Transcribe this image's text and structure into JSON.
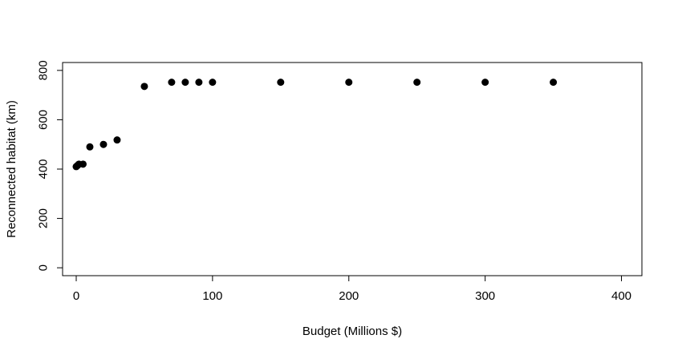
{
  "chart_data": {
    "type": "scatter",
    "title": "",
    "xlabel": "Budget (Millions $)",
    "ylabel": "Reconnected habitat (km)",
    "xlim": [
      -10,
      415
    ],
    "ylim": [
      -32,
      832
    ],
    "x_ticks": [
      0,
      100,
      200,
      300,
      400
    ],
    "y_ticks": [
      0,
      200,
      400,
      600,
      800
    ],
    "x_tick_labels": [
      "0",
      "100",
      "200",
      "300",
      "400"
    ],
    "y_tick_labels": [
      "0",
      "200",
      "400",
      "600",
      "800"
    ],
    "grid": false,
    "marker_color": "#000000",
    "points": [
      {
        "x": 0,
        "y": 410
      },
      {
        "x": 1,
        "y": 415
      },
      {
        "x": 2,
        "y": 420
      },
      {
        "x": 5,
        "y": 420
      },
      {
        "x": 10,
        "y": 490
      },
      {
        "x": 20,
        "y": 500
      },
      {
        "x": 30,
        "y": 518
      },
      {
        "x": 50,
        "y": 735
      },
      {
        "x": 70,
        "y": 752
      },
      {
        "x": 80,
        "y": 752
      },
      {
        "x": 90,
        "y": 752
      },
      {
        "x": 100,
        "y": 752
      },
      {
        "x": 150,
        "y": 752
      },
      {
        "x": 200,
        "y": 752
      },
      {
        "x": 250,
        "y": 752
      },
      {
        "x": 300,
        "y": 752
      },
      {
        "x": 350,
        "y": 752
      }
    ]
  }
}
